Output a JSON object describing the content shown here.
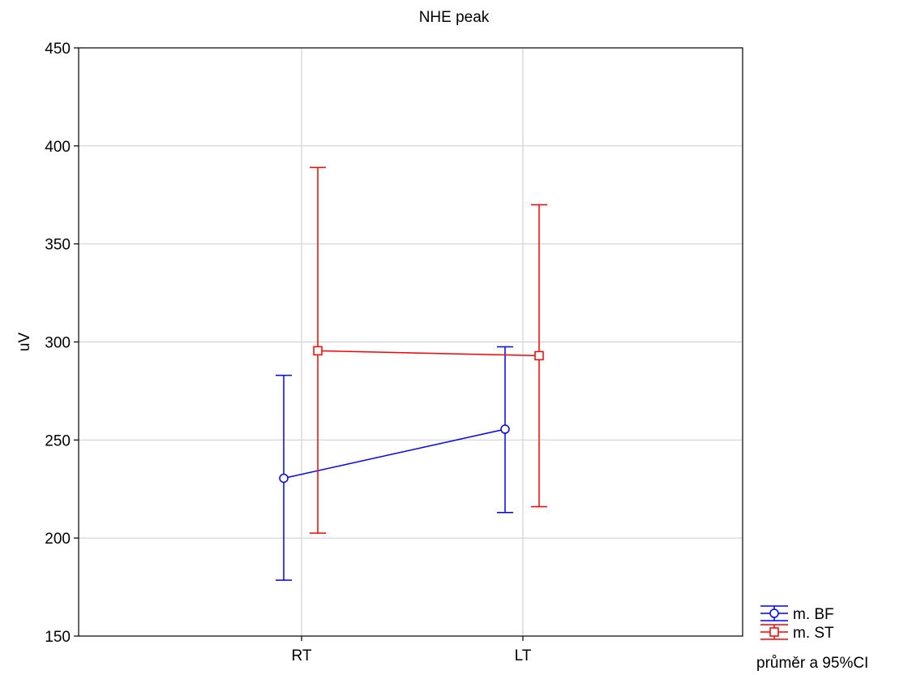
{
  "chart_data": {
    "type": "line",
    "title": "NHE peak",
    "xlabel": "",
    "ylabel": "uV",
    "categories": [
      "RT",
      "LT"
    ],
    "ylim": [
      150,
      450
    ],
    "yticks": [
      150,
      200,
      250,
      300,
      350,
      400,
      450
    ],
    "grid": true,
    "legend_position": "bottom-right, outside plot",
    "legend_note": "průměr a 95%CI",
    "series": [
      {
        "name": "m. BF",
        "color": "#0000ff",
        "marker": "circle",
        "values": [
          230.5,
          255.5
        ],
        "ci_low": [
          178.5,
          213
        ],
        "ci_high": [
          283,
          297.5
        ]
      },
      {
        "name": "m. ST",
        "color": "#ff0000",
        "marker": "square",
        "values": [
          295.5,
          293
        ],
        "ci_low": [
          202.5,
          216
        ],
        "ci_high": [
          389,
          370
        ]
      }
    ]
  }
}
